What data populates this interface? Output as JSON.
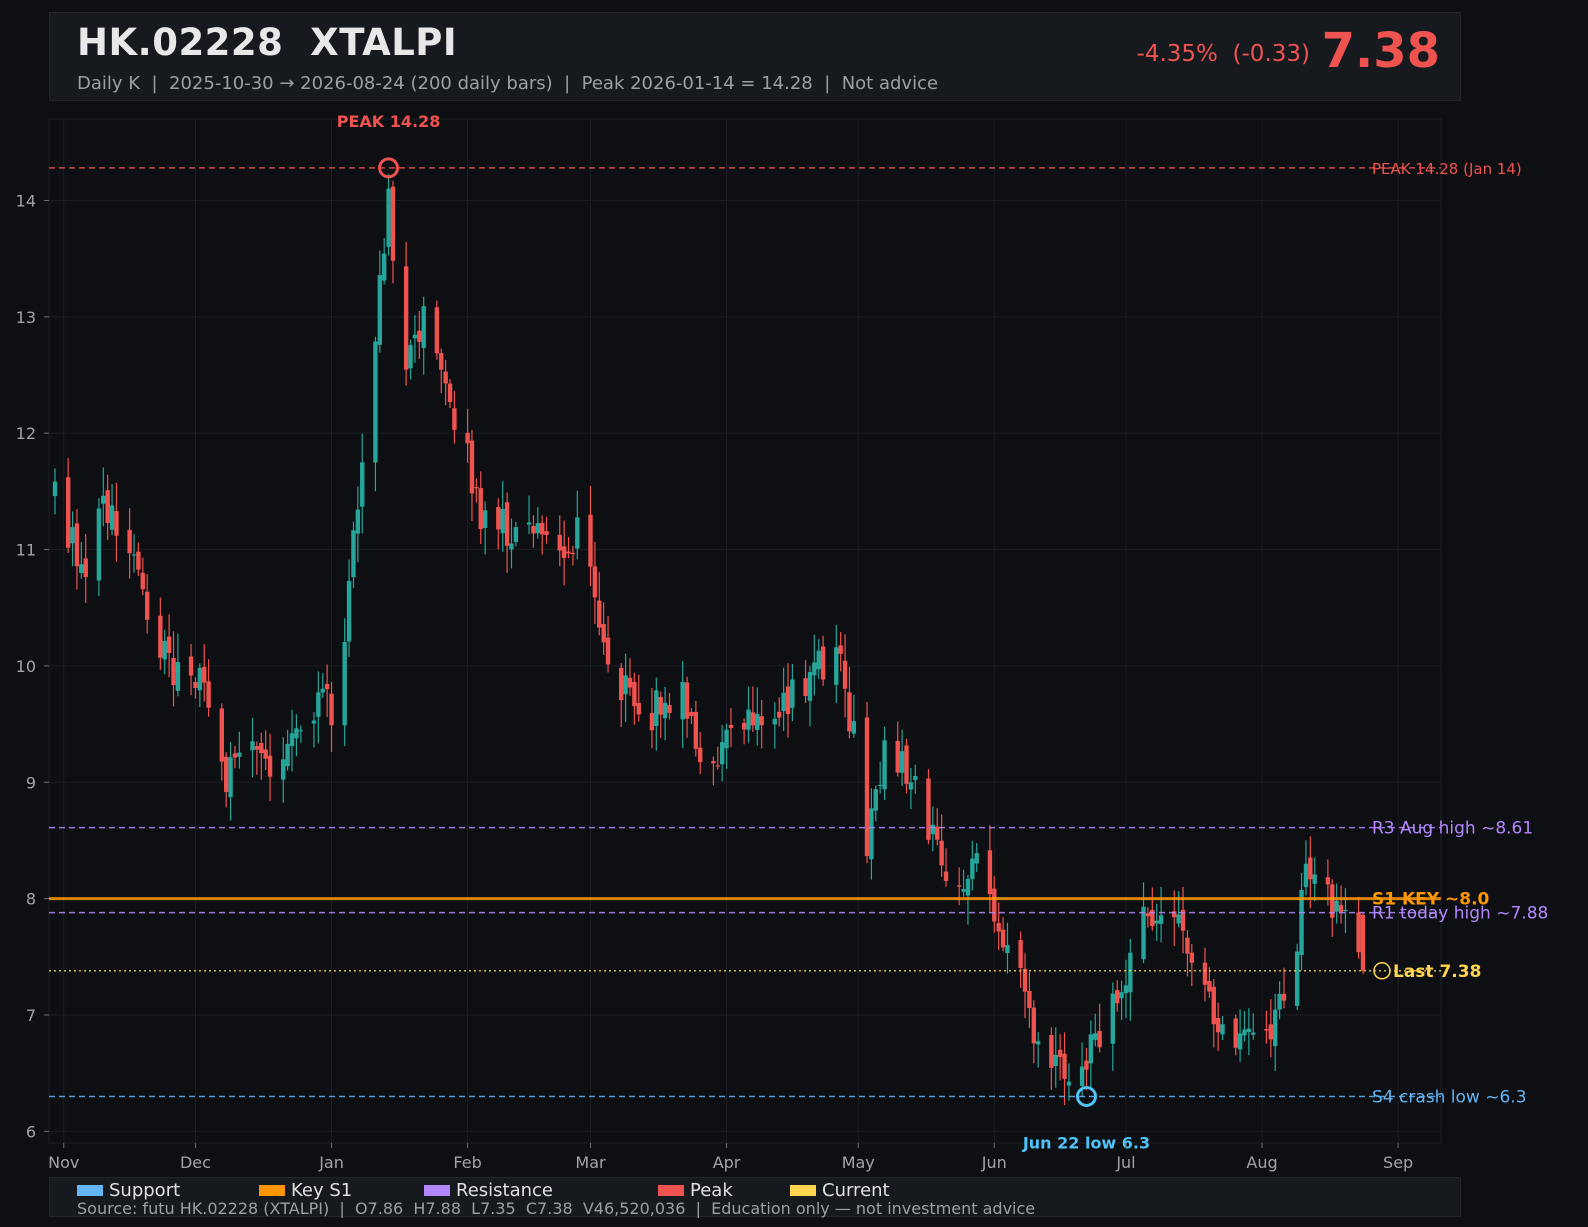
{
  "header": {
    "ticker": "HK.02228  XTALPI",
    "subtitle": "Daily K  |  2025-10-30 → 2026-08-24 (200 daily bars)  |  Peak 2026-01-14 = 14.28  |  Not advice",
    "change": "-4.35%  (-0.33)",
    "price": "7.38"
  },
  "legend": [
    {
      "label": "Support",
      "color": "#64b5f6"
    },
    {
      "label": "Key S1",
      "color": "#ff9800"
    },
    {
      "label": "Resistance",
      "color": "#b388ff"
    },
    {
      "label": "Peak",
      "color": "#ef5350"
    },
    {
      "label": "Current",
      "color": "#ffd54f"
    }
  ],
  "source": "Source: futu HK.02228 (XTALPI)  |  O7.86  H7.88  L7.35  C7.38  V46,520,036  |  Education only — not investment advice",
  "colors": {
    "up": "#26a69a",
    "down": "#ef5350"
  },
  "chart_data": {
    "type": "candlestick",
    "ylim": [
      5.9,
      14.7
    ],
    "yticks": [
      6,
      7,
      8,
      9,
      10,
      11,
      12,
      13,
      14
    ],
    "x_start": "2025-10-30",
    "x_end": "2026-08-24",
    "xticks": [
      {
        "label": "Nov",
        "date": "2025-11-01"
      },
      {
        "label": "Dec",
        "date": "2025-12-01"
      },
      {
        "label": "Jan",
        "date": "2026-01-01"
      },
      {
        "label": "Feb",
        "date": "2026-02-01"
      },
      {
        "label": "Mar",
        "date": "2026-03-01"
      },
      {
        "label": "Apr",
        "date": "2026-04-01"
      },
      {
        "label": "May",
        "date": "2026-05-01"
      },
      {
        "label": "Jun",
        "date": "2026-06-01"
      },
      {
        "label": "Jul",
        "date": "2026-07-01"
      },
      {
        "label": "Aug",
        "date": "2026-08-01"
      },
      {
        "label": "Sep",
        "date": "2026-09-01"
      }
    ],
    "levels": [
      {
        "label": "PEAK 14.28 (Jan 14)",
        "value": 14.28,
        "color": "#ef5350",
        "style": "dashed"
      },
      {
        "label": "R3 Aug high ~8.61",
        "value": 8.61,
        "color": "#b388ff",
        "style": "dashed"
      },
      {
        "label": "S1 KEY ~8.0",
        "value": 8.0,
        "color": "#ff9800",
        "style": "solid"
      },
      {
        "label": "R1 today high ~7.88",
        "value": 7.88,
        "color": "#b388ff",
        "style": "dashed"
      },
      {
        "label": "Last 7.38",
        "value": 7.38,
        "color": "#ffd54f",
        "style": "dotted"
      },
      {
        "label": "S4 crash low ~6.3",
        "value": 6.3,
        "color": "#64b5f6",
        "style": "dashed"
      }
    ],
    "annotations": [
      {
        "label": "PEAK 14.28",
        "date": "2026-01-14",
        "value": 14.28,
        "color": "#ef5350"
      },
      {
        "label": "Jun 22 low 6.3",
        "date": "2026-06-22",
        "value": 6.3,
        "color": "#4fc3f7"
      }
    ],
    "anchors": [
      [
        "2025-10-30",
        11.5
      ],
      [
        "2025-11-05",
        10.8
      ],
      [
        "2025-11-10",
        11.4
      ],
      [
        "2025-11-15",
        11.2
      ],
      [
        "2025-11-20",
        10.4
      ],
      [
        "2025-11-27",
        9.9
      ],
      [
        "2025-12-03",
        10.0
      ],
      [
        "2025-12-08",
        9.0
      ],
      [
        "2025-12-13",
        9.5
      ],
      [
        "2025-12-20",
        9.1
      ],
      [
        "2025-12-27",
        9.7
      ],
      [
        "2026-01-02",
        9.6
      ],
      [
        "2026-01-07",
        11.5
      ],
      [
        "2026-01-12",
        13.2
      ],
      [
        "2026-01-14",
        14.0
      ],
      [
        "2026-01-17",
        12.5
      ],
      [
        "2026-01-22",
        13.0
      ],
      [
        "2026-01-28",
        12.3
      ],
      [
        "2026-02-05",
        11.2
      ],
      [
        "2026-02-13",
        11.2
      ],
      [
        "2026-02-22",
        11.0
      ],
      [
        "2026-02-28",
        11.2
      ],
      [
        "2026-03-03",
        10.2
      ],
      [
        "2026-03-08",
        9.8
      ],
      [
        "2026-03-15",
        9.6
      ],
      [
        "2026-03-22",
        9.8
      ],
      [
        "2026-03-28",
        9.1
      ],
      [
        "2026-04-05",
        9.6
      ],
      [
        "2026-04-12",
        9.7
      ],
      [
        "2026-04-18",
        9.8
      ],
      [
        "2026-04-26",
        10.2
      ],
      [
        "2026-05-01",
        9.2
      ],
      [
        "2026-05-03",
        8.4
      ],
      [
        "2026-05-07",
        9.3
      ],
      [
        "2026-05-13",
        9.1
      ],
      [
        "2026-05-22",
        8.1
      ],
      [
        "2026-05-29",
        8.3
      ],
      [
        "2026-06-02",
        7.8
      ],
      [
        "2026-06-10",
        6.9
      ],
      [
        "2026-06-18",
        6.5
      ],
      [
        "2026-06-22",
        6.6
      ],
      [
        "2026-07-01",
        7.4
      ],
      [
        "2026-07-06",
        7.9
      ],
      [
        "2026-07-13",
        7.7
      ],
      [
        "2026-07-17",
        7.2
      ],
      [
        "2026-07-25",
        6.9
      ],
      [
        "2026-08-01",
        6.6
      ],
      [
        "2026-08-08",
        7.4
      ],
      [
        "2026-08-11",
        8.3
      ],
      [
        "2026-08-17",
        7.9
      ],
      [
        "2026-08-21",
        7.7
      ],
      [
        "2026-08-24",
        7.38
      ]
    ]
  }
}
